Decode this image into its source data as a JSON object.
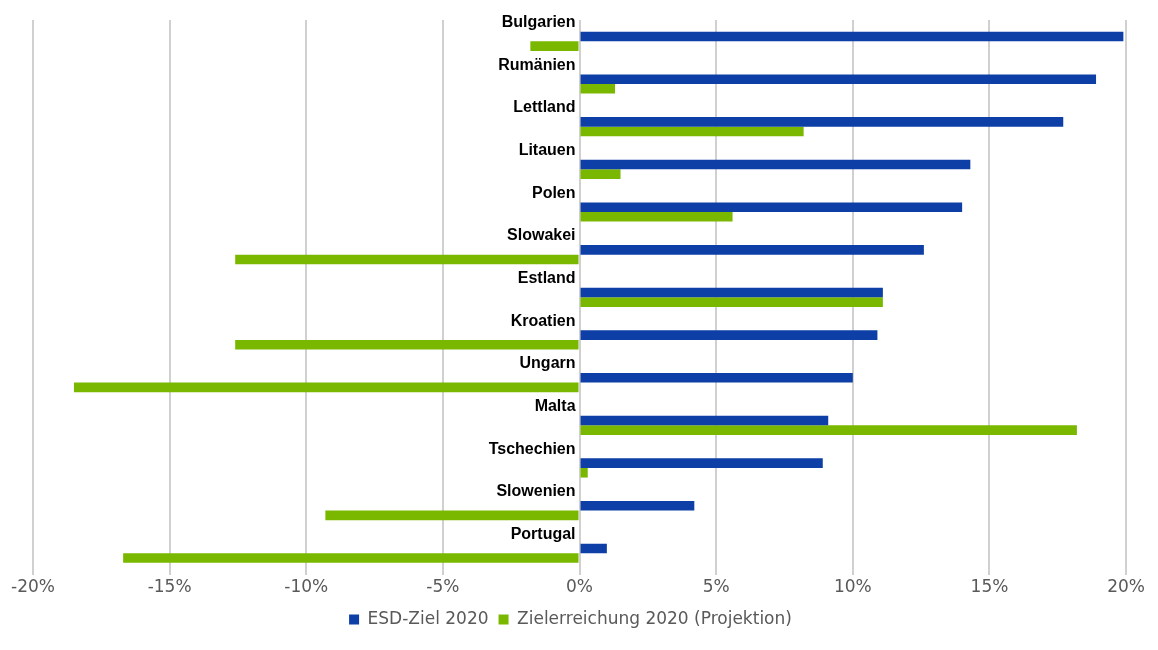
{
  "chart_data": {
    "type": "bar",
    "orientation": "horizontal",
    "categories": [
      "Bulgarien",
      "Rumänien",
      "Lettland",
      "Litauen",
      "Polen",
      "Slowakei",
      "Estland",
      "Kroatien",
      "Ungarn",
      "Malta",
      "Tschechien",
      "Slowenien",
      "Portugal"
    ],
    "series": [
      {
        "name": "ESD-Ziel 2020",
        "color": "#0d3fa6",
        "values": [
          19.9,
          18.9,
          17.7,
          14.3,
          14.0,
          12.6,
          11.1,
          10.9,
          10.0,
          9.1,
          8.9,
          4.2,
          1.0
        ]
      },
      {
        "name": "Zielerreichung 2020 (Projektion)",
        "color": "#7ab800",
        "values": [
          -1.8,
          1.3,
          8.2,
          1.5,
          5.6,
          -12.6,
          11.1,
          -12.6,
          -18.5,
          18.2,
          0.3,
          -9.3,
          -16.7
        ]
      }
    ],
    "xlim": [
      -20,
      20
    ],
    "xticks": [
      {
        "value": -20,
        "label": "-20%"
      },
      {
        "value": -15,
        "label": "-15%"
      },
      {
        "value": -10,
        "label": "-10%"
      },
      {
        "value": -5,
        "label": "-5%"
      },
      {
        "value": 0,
        "label": "0%"
      },
      {
        "value": 5,
        "label": "5%"
      },
      {
        "value": 10,
        "label": "10%"
      },
      {
        "value": 15,
        "label": "15%"
      },
      {
        "value": 20,
        "label": "20%"
      }
    ],
    "grid": "x",
    "legend": "bottom"
  }
}
